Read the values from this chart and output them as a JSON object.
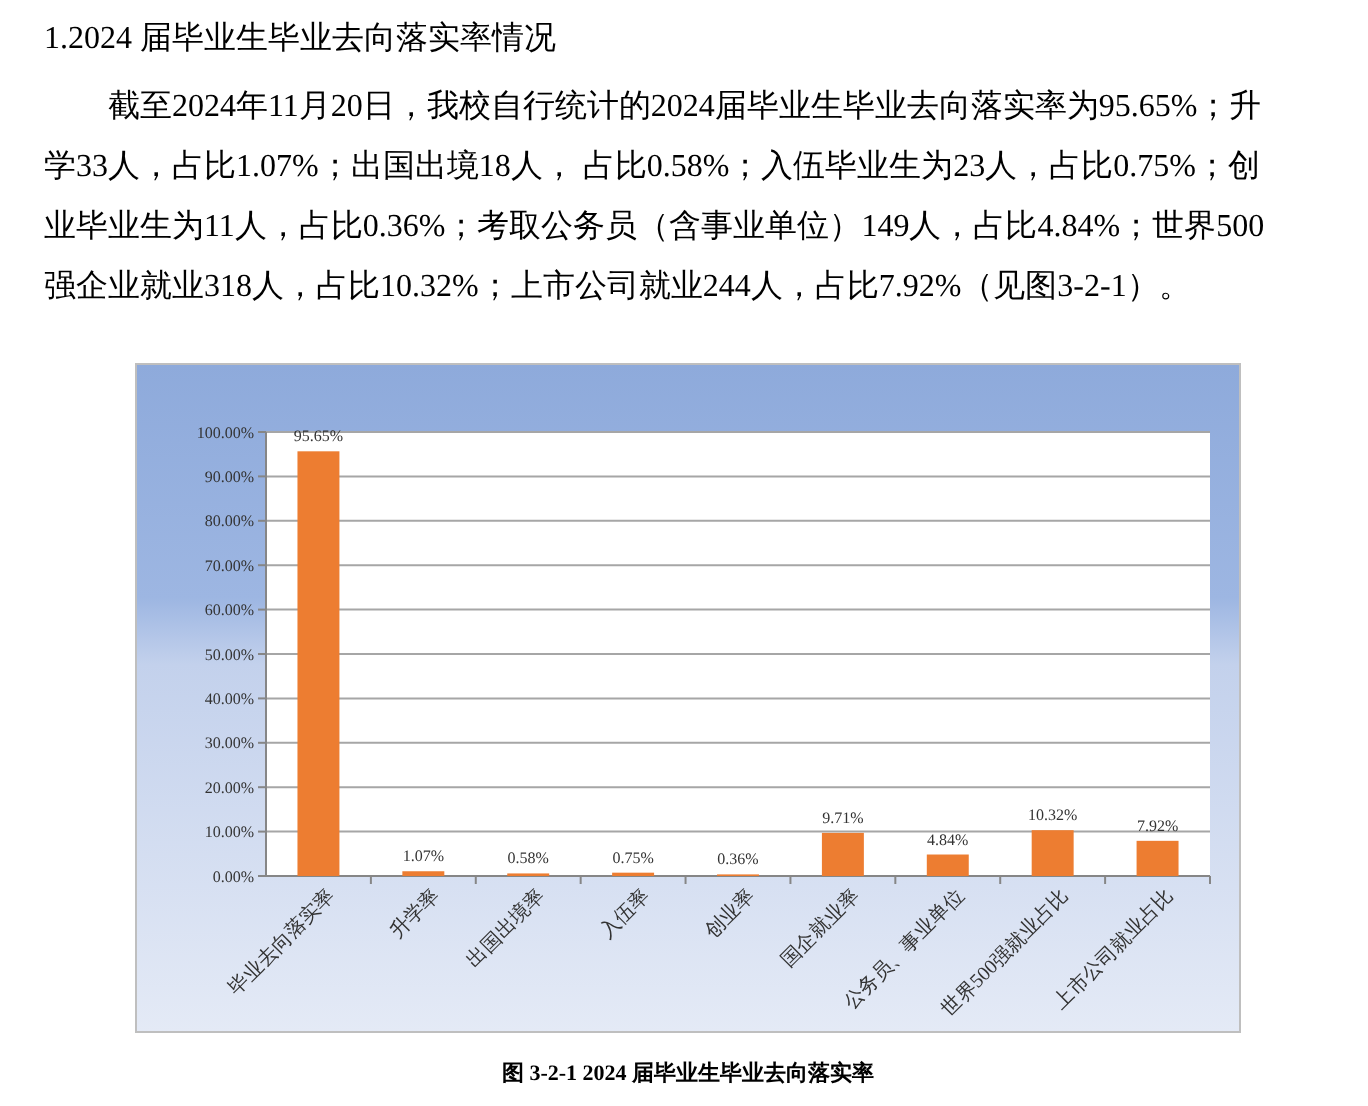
{
  "chart_data": {
    "type": "bar",
    "title": "1.2024 届毕业生毕业去向落实率情况",
    "subtitle": "截至2024年11月20日，我校自行统计的2024届毕业生毕业去向落实率为95.65%；升学33人，占比1.07%；出国出境18人， 占比0.58%；入伍毕业生为23人，占比0.75%；创业毕业生为11人，占比0.36%；考取公务员（含事业单位）149人，占比4.84%；世界500强企业就业318人，占比10.32%；上市公司就业244人，占比7.92%（见图3-2-1）。",
    "annotations": [
      "图 3-2-1 2024 届毕业生毕业去向落实率"
    ],
    "categories": [
      "毕业去向落实率",
      "升学率",
      "出国出境率",
      "入伍率",
      "创业率",
      "国企就业率",
      "公务员、事业单位",
      "世界500强就业占比",
      "上市公司就业占比"
    ],
    "values": [
      95.65,
      1.07,
      0.58,
      0.75,
      0.36,
      9.71,
      4.84,
      10.32,
      7.92
    ],
    "value_labels": [
      "95.65%",
      "1.07%",
      "0.58%",
      "0.75%",
      "0.36%",
      "9.71%",
      "4.84%",
      "10.32%",
      "7.92%"
    ],
    "color": "#ed7d31",
    "ylim": [
      0,
      100
    ],
    "yticks": [
      {
        "value": 0,
        "label": "0.00%"
      },
      {
        "value": 10,
        "label": "10.00%"
      },
      {
        "value": 20,
        "label": "20.00%"
      },
      {
        "value": 30,
        "label": "30.00%"
      },
      {
        "value": 40,
        "label": "40.00%"
      },
      {
        "value": 50,
        "label": "50.00%"
      },
      {
        "value": 60,
        "label": "60.00%"
      },
      {
        "value": 70,
        "label": "70.00%"
      },
      {
        "value": 80,
        "label": "80.00%"
      },
      {
        "value": 90,
        "label": "90.00%"
      },
      {
        "value": 100,
        "label": "100.00%"
      }
    ],
    "grid": "y"
  }
}
